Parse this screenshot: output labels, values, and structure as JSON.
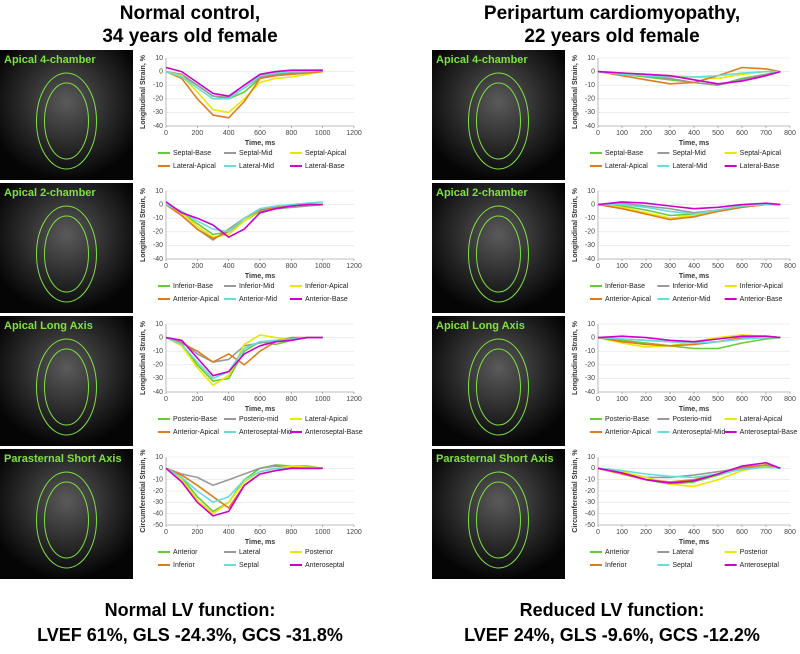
{
  "columns": [
    {
      "title_lines": [
        "Normal control,",
        "34 years old female"
      ],
      "footer_lines": [
        "Normal LV function:",
        "LVEF 61%, GLS -24.3%, GCS -31.8%"
      ]
    },
    {
      "title_lines": [
        "Peripartum cardiomyopathy,",
        "22 years old female"
      ],
      "footer_lines": [
        "Reduced LV function:",
        "LVEF 24%, GLS -9.6%, GCS -12.2%"
      ]
    }
  ],
  "chart_data": [
    {
      "type": "line",
      "title": "Apical 4-chamber",
      "xlabel": "Time, ms",
      "ylabel": "Longitudinal Strain, %",
      "grid": true,
      "x": [
        0,
        100,
        200,
        300,
        400,
        500,
        600,
        700,
        800,
        900,
        1000
      ],
      "xlim": [
        0,
        1200
      ],
      "xticks": [
        0,
        200,
        400,
        600,
        800,
        1000,
        1200
      ],
      "ylim": [
        -40,
        10
      ],
      "yticks": [
        -40,
        -30,
        -20,
        -10,
        0,
        10
      ],
      "series": [
        {
          "name": "Septal-Base",
          "color": "#66cc33",
          "values": [
            0,
            -3,
            -10,
            -18,
            -20,
            -15,
            -5,
            -2,
            -1,
            0,
            0
          ]
        },
        {
          "name": "Septal-Mid",
          "color": "#999999",
          "values": [
            0,
            -2,
            -10,
            -18,
            -19,
            -12,
            -4,
            -2,
            -1,
            0,
            1
          ]
        },
        {
          "name": "Septal-Apical",
          "color": "#e8e800",
          "values": [
            0,
            -3,
            -15,
            -28,
            -30,
            -20,
            -8,
            -5,
            -4,
            -2,
            0
          ]
        },
        {
          "name": "Lateral-Apical",
          "color": "#e07b20",
          "values": [
            0,
            -5,
            -20,
            -32,
            -34,
            -22,
            -5,
            -3,
            -2,
            -1,
            0
          ]
        },
        {
          "name": "Lateral-Mid",
          "color": "#66dddd",
          "values": [
            0,
            -4,
            -12,
            -20,
            -20,
            -12,
            -3,
            -1,
            0,
            0,
            1
          ]
        },
        {
          "name": "Lateral-Base",
          "color": "#cc00cc",
          "values": [
            3,
            0,
            -8,
            -16,
            -18,
            -10,
            -2,
            0,
            1,
            1,
            1
          ]
        }
      ]
    },
    {
      "type": "line",
      "title": "Apical 2-chamber",
      "xlabel": "Time, ms",
      "ylabel": "Longitudinal Strain, %",
      "grid": true,
      "x": [
        0,
        100,
        200,
        300,
        400,
        500,
        600,
        700,
        800,
        900,
        1000
      ],
      "xlim": [
        0,
        1200
      ],
      "xticks": [
        0,
        200,
        400,
        600,
        800,
        1000,
        1200
      ],
      "ylim": [
        -40,
        10
      ],
      "yticks": [
        -40,
        -30,
        -20,
        -10,
        0,
        10
      ],
      "series": [
        {
          "name": "Inferior-Base",
          "color": "#66cc33",
          "values": [
            0,
            -6,
            -14,
            -22,
            -20,
            -12,
            -5,
            -3,
            -2,
            -1,
            0
          ]
        },
        {
          "name": "Inferior-Mid",
          "color": "#999999",
          "values": [
            0,
            -8,
            -18,
            -26,
            -18,
            -10,
            -5,
            -3,
            -2,
            -1,
            0
          ]
        },
        {
          "name": "Inferior-Apical",
          "color": "#e8e800",
          "values": [
            0,
            -6,
            -16,
            -24,
            -22,
            -12,
            -4,
            -2,
            -1,
            0,
            0
          ]
        },
        {
          "name": "Anterior-Apical",
          "color": "#e07b20",
          "values": [
            0,
            -8,
            -18,
            -25,
            -20,
            -10,
            -4,
            -2,
            -1,
            0,
            0
          ]
        },
        {
          "name": "Anterior-Mid",
          "color": "#66dddd",
          "values": [
            0,
            -5,
            -12,
            -18,
            -20,
            -10,
            -3,
            -1,
            0,
            1,
            2
          ]
        },
        {
          "name": "Anterior-Base",
          "color": "#cc00cc",
          "values": [
            2,
            -6,
            -10,
            -15,
            -24,
            -18,
            -6,
            -3,
            -1,
            0,
            0
          ]
        }
      ]
    },
    {
      "type": "line",
      "title": "Apical Long Axis",
      "xlabel": "Time, ms",
      "ylabel": "Longitudinal Strain, %",
      "grid": true,
      "x": [
        0,
        100,
        200,
        300,
        400,
        500,
        600,
        700,
        800,
        900,
        1000
      ],
      "xlim": [
        0,
        1200
      ],
      "xticks": [
        0,
        200,
        400,
        600,
        800,
        1000,
        1200
      ],
      "ylim": [
        -40,
        10
      ],
      "yticks": [
        -40,
        -30,
        -20,
        -10,
        0,
        10
      ],
      "series": [
        {
          "name": "Posterio-Base",
          "color": "#66cc33",
          "values": [
            0,
            -5,
            -20,
            -32,
            -30,
            -10,
            -3,
            -5,
            -2,
            0,
            0
          ]
        },
        {
          "name": "Posterio-mid",
          "color": "#999999",
          "values": [
            0,
            -3,
            -12,
            -18,
            -16,
            -6,
            -4,
            -2,
            -1,
            0,
            0
          ]
        },
        {
          "name": "Lateral-Apical",
          "color": "#e8e800",
          "values": [
            0,
            -6,
            -22,
            -35,
            -28,
            -5,
            2,
            0,
            -1,
            0,
            0
          ]
        },
        {
          "name": "Anterior-Apical",
          "color": "#e07b20",
          "values": [
            0,
            -4,
            -10,
            -18,
            -12,
            -20,
            -10,
            -3,
            0,
            0,
            0
          ]
        },
        {
          "name": "Anteroseptal-Mid",
          "color": "#66dddd",
          "values": [
            0,
            -5,
            -18,
            -30,
            -25,
            -8,
            -3,
            -2,
            -1,
            0,
            0
          ]
        },
        {
          "name": "Anteroseptal-Base",
          "color": "#cc00cc",
          "values": [
            0,
            -2,
            -15,
            -28,
            -25,
            -12,
            -6,
            -3,
            -2,
            0,
            0
          ]
        }
      ]
    },
    {
      "type": "line",
      "title": "Parasternal Short Axis",
      "xlabel": "Time, ms",
      "ylabel": "Circumferential Strain, %",
      "grid": true,
      "x": [
        0,
        100,
        200,
        300,
        400,
        500,
        600,
        700,
        800,
        900,
        1000
      ],
      "xlim": [
        0,
        1200
      ],
      "xticks": [
        0,
        200,
        400,
        600,
        800,
        1000,
        1200
      ],
      "ylim": [
        -50,
        10
      ],
      "yticks": [
        -50,
        -40,
        -30,
        -20,
        -10,
        0,
        10
      ],
      "series": [
        {
          "name": "Anterior",
          "color": "#66cc33",
          "values": [
            0,
            -8,
            -25,
            -38,
            -30,
            -10,
            0,
            3,
            2,
            2,
            0
          ]
        },
        {
          "name": "Lateral",
          "color": "#999999",
          "values": [
            0,
            -5,
            -8,
            -15,
            -10,
            -5,
            0,
            2,
            1,
            0,
            0
          ]
        },
        {
          "name": "Posterior",
          "color": "#e8e800",
          "values": [
            0,
            -10,
            -28,
            -40,
            -30,
            -12,
            -3,
            0,
            2,
            1,
            0
          ]
        },
        {
          "name": "Inferior",
          "color": "#e07b20",
          "values": [
            0,
            -6,
            -15,
            -25,
            -35,
            -15,
            -5,
            -2,
            0,
            0,
            0
          ]
        },
        {
          "name": "Septal",
          "color": "#66dddd",
          "values": [
            0,
            -8,
            -20,
            -30,
            -25,
            -10,
            -3,
            0,
            0,
            0,
            0
          ]
        },
        {
          "name": "Anteroseptal",
          "color": "#cc00cc",
          "values": [
            0,
            -12,
            -30,
            -42,
            -38,
            -15,
            -5,
            -2,
            0,
            0,
            0
          ]
        }
      ]
    },
    {
      "type": "line",
      "title": "Apical 4-chamber",
      "xlabel": "Time, ms",
      "ylabel": "Longitudinal Strain, %",
      "grid": true,
      "x": [
        0,
        100,
        200,
        300,
        400,
        500,
        600,
        700,
        760
      ],
      "xlim": [
        0,
        800
      ],
      "xticks": [
        0,
        100,
        200,
        300,
        400,
        500,
        600,
        700,
        800
      ],
      "ylim": [
        -40,
        10
      ],
      "yticks": [
        -40,
        -30,
        -20,
        -10,
        0,
        10
      ],
      "series": [
        {
          "name": "Septal-Base",
          "color": "#66cc33",
          "values": [
            0,
            -2,
            -4,
            -6,
            -8,
            -10,
            -5,
            -2,
            0
          ]
        },
        {
          "name": "Septal-Mid",
          "color": "#999999",
          "values": [
            0,
            -1,
            -3,
            -5,
            -8,
            -10,
            -6,
            -2,
            0
          ]
        },
        {
          "name": "Septal-Apical",
          "color": "#e8e800",
          "values": [
            0,
            -1,
            -2,
            -3,
            -4,
            -5,
            -2,
            0,
            0
          ]
        },
        {
          "name": "Lateral-Apical",
          "color": "#e07b20",
          "values": [
            0,
            -3,
            -6,
            -9,
            -8,
            -3,
            3,
            2,
            0
          ]
        },
        {
          "name": "Lateral-Mid",
          "color": "#66dddd",
          "values": [
            0,
            -2,
            -3,
            -4,
            -4,
            -3,
            -1,
            0,
            0
          ]
        },
        {
          "name": "Lateral-Base",
          "color": "#cc00cc",
          "values": [
            0,
            -1,
            -2,
            -3,
            -6,
            -9,
            -7,
            -3,
            0
          ]
        }
      ]
    },
    {
      "type": "line",
      "title": "Apical 2-chamber",
      "xlabel": "Time, ms",
      "ylabel": "Longitudinal Strain, %",
      "grid": true,
      "x": [
        0,
        100,
        200,
        300,
        400,
        500,
        600,
        700,
        760
      ],
      "xlim": [
        0,
        800
      ],
      "xticks": [
        0,
        100,
        200,
        300,
        400,
        500,
        600,
        700,
        800
      ],
      "ylim": [
        -40,
        10
      ],
      "yticks": [
        -40,
        -30,
        -20,
        -10,
        0,
        10
      ],
      "series": [
        {
          "name": "Inferior-Base",
          "color": "#66cc33",
          "values": [
            0,
            -1,
            -4,
            -8,
            -7,
            -4,
            -1,
            0,
            0
          ]
        },
        {
          "name": "Inferior-Mid",
          "color": "#999999",
          "values": [
            0,
            1,
            -1,
            -3,
            -6,
            -4,
            -1,
            0,
            0
          ]
        },
        {
          "name": "Inferior-Apical",
          "color": "#e8e800",
          "values": [
            0,
            -2,
            -6,
            -10,
            -8,
            -4,
            -1,
            0,
            0
          ]
        },
        {
          "name": "Anterior-Apical",
          "color": "#e07b20",
          "values": [
            0,
            -3,
            -7,
            -11,
            -9,
            -5,
            -2,
            0,
            0
          ]
        },
        {
          "name": "Anterior-Mid",
          "color": "#66dddd",
          "values": [
            0,
            0,
            -2,
            -5,
            -7,
            -4,
            -1,
            0,
            0
          ]
        },
        {
          "name": "Anterior-Base",
          "color": "#cc00cc",
          "values": [
            0,
            2,
            1,
            -1,
            -3,
            -2,
            0,
            1,
            0
          ]
        }
      ]
    },
    {
      "type": "line",
      "title": "Apical Long Axis",
      "xlabel": "Time, ms",
      "ylabel": "Longitudinal Strain, %",
      "grid": true,
      "x": [
        0,
        100,
        200,
        300,
        400,
        500,
        600,
        700,
        760
      ],
      "xlim": [
        0,
        800
      ],
      "xticks": [
        0,
        100,
        200,
        300,
        400,
        500,
        600,
        700,
        800
      ],
      "ylim": [
        -40,
        10
      ],
      "yticks": [
        -40,
        -30,
        -20,
        -10,
        0,
        10
      ],
      "series": [
        {
          "name": "Posterio-Base",
          "color": "#66cc33",
          "values": [
            0,
            -2,
            -4,
            -6,
            -8,
            -8,
            -4,
            -1,
            0
          ]
        },
        {
          "name": "Posterio-mid",
          "color": "#999999",
          "values": [
            0,
            -1,
            -2,
            -3,
            -4,
            -3,
            -1,
            0,
            0
          ]
        },
        {
          "name": "Lateral-Apical",
          "color": "#e8e800",
          "values": [
            0,
            -4,
            -7,
            -6,
            -3,
            0,
            2,
            1,
            0
          ]
        },
        {
          "name": "Anterior-Apical",
          "color": "#e07b20",
          "values": [
            0,
            -3,
            -5,
            -6,
            -5,
            -3,
            0,
            1,
            0
          ]
        },
        {
          "name": "Anteroseptal-Mid",
          "color": "#66dddd",
          "values": [
            0,
            -1,
            -2,
            -3,
            -4,
            -3,
            -1,
            0,
            0
          ]
        },
        {
          "name": "Anteroseptal-Base",
          "color": "#cc00cc",
          "values": [
            0,
            1,
            0,
            -2,
            -3,
            -1,
            1,
            1,
            0
          ]
        }
      ]
    },
    {
      "type": "line",
      "title": "Parasternal Short Axis",
      "xlabel": "Time, ms",
      "ylabel": "Circumferential Strain, %",
      "grid": true,
      "x": [
        0,
        100,
        200,
        300,
        400,
        500,
        600,
        700,
        760
      ],
      "xlim": [
        0,
        800
      ],
      "xticks": [
        0,
        100,
        200,
        300,
        400,
        500,
        600,
        700,
        800
      ],
      "ylim": [
        -50,
        10
      ],
      "yticks": [
        -50,
        -40,
        -30,
        -20,
        -10,
        0,
        10
      ],
      "series": [
        {
          "name": "Anterior",
          "color": "#66cc33",
          "values": [
            0,
            -5,
            -10,
            -14,
            -12,
            -6,
            0,
            3,
            0
          ]
        },
        {
          "name": "Lateral",
          "color": "#999999",
          "values": [
            0,
            -4,
            -8,
            -8,
            -6,
            -3,
            0,
            2,
            0
          ]
        },
        {
          "name": "Posterior",
          "color": "#e8e800",
          "values": [
            0,
            -3,
            -8,
            -14,
            -16,
            -10,
            -2,
            2,
            0
          ]
        },
        {
          "name": "Inferior",
          "color": "#e07b20",
          "values": [
            0,
            -5,
            -10,
            -12,
            -10,
            -5,
            1,
            3,
            0
          ]
        },
        {
          "name": "Septal",
          "color": "#66dddd",
          "values": [
            0,
            -2,
            -5,
            -7,
            -8,
            -5,
            -1,
            1,
            0
          ]
        },
        {
          "name": "Anteroseptal",
          "color": "#cc00cc",
          "values": [
            0,
            -4,
            -10,
            -13,
            -11,
            -5,
            2,
            5,
            0
          ]
        }
      ]
    }
  ]
}
